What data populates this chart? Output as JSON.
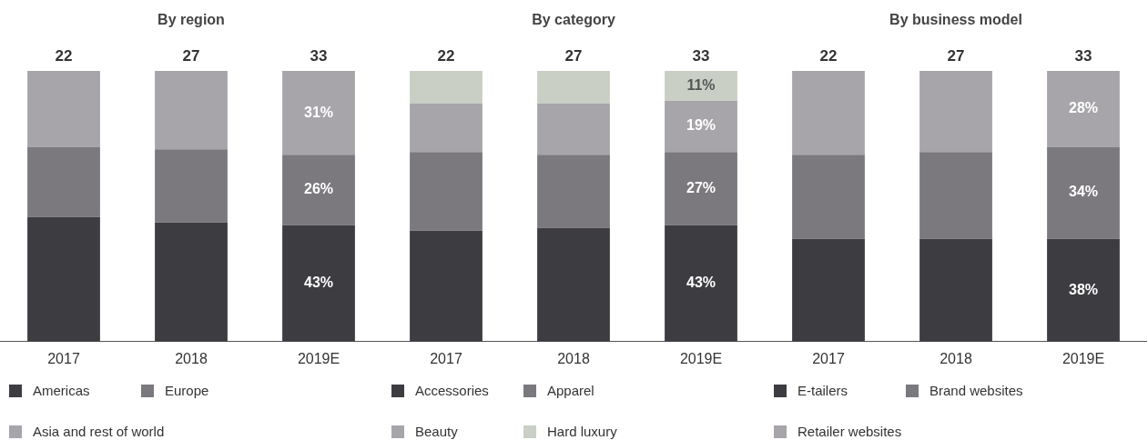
{
  "chart_data": [
    {
      "type": "bar",
      "title": "By region",
      "categories": [
        "2017",
        "2018",
        "2019E"
      ],
      "stacked": true,
      "tick_labels": "x",
      "legend": "bottom",
      "annotations": [
        {
          "text": "22",
          "x": "2017",
          "y": 100
        },
        {
          "text": "27",
          "x": "2018",
          "y": 100
        },
        {
          "text": "33",
          "x": "2019E",
          "y": 100
        }
      ],
      "series": [
        {
          "name": "Americas",
          "color": "#3c3c41",
          "values": [
            46,
            44,
            43
          ],
          "value_labels": [
            null,
            null,
            "43%"
          ]
        },
        {
          "name": "Europe",
          "color": "#7b797e",
          "values": [
            26,
            27,
            26
          ],
          "value_labels": [
            null,
            null,
            "26%"
          ]
        },
        {
          "name": "Asia and rest of world",
          "color": "#a7a5a9",
          "values": [
            28,
            29,
            31
          ],
          "value_labels": [
            null,
            null,
            "31%"
          ]
        }
      ]
    },
    {
      "type": "bar",
      "title": "By category",
      "categories": [
        "2017",
        "2018",
        "2019E"
      ],
      "stacked": true,
      "tick_labels": "x",
      "legend": "bottom",
      "annotations": [
        {
          "text": "22",
          "x": "2017",
          "y": 100
        },
        {
          "text": "27",
          "x": "2018",
          "y": 100
        },
        {
          "text": "33",
          "x": "2019E",
          "y": 100
        }
      ],
      "series": [
        {
          "name": "Accessories",
          "color": "#3c3c41",
          "values": [
            41,
            42,
            43
          ],
          "value_labels": [
            null,
            null,
            "43%"
          ]
        },
        {
          "name": "Apparel",
          "color": "#7b797e",
          "values": [
            29,
            27,
            27
          ],
          "value_labels": [
            null,
            null,
            "27%"
          ]
        },
        {
          "name": "Beauty",
          "color": "#a7a5a9",
          "values": [
            18,
            19,
            19
          ],
          "value_labels": [
            null,
            null,
            "19%"
          ]
        },
        {
          "name": "Hard luxury",
          "color": "#c9cfc5",
          "values": [
            12,
            12,
            11
          ],
          "value_labels": [
            null,
            null,
            "11%"
          ]
        }
      ]
    },
    {
      "type": "bar",
      "title": "By business model",
      "categories": [
        "2017",
        "2018",
        "2019E"
      ],
      "stacked": true,
      "tick_labels": "x",
      "legend": "bottom",
      "annotations": [
        {
          "text": "22",
          "x": "2017",
          "y": 100
        },
        {
          "text": "27",
          "x": "2018",
          "y": 100
        },
        {
          "text": "33",
          "x": "2019E",
          "y": 100
        }
      ],
      "series": [
        {
          "name": "E-tailers",
          "color": "#3c3c41",
          "values": [
            38,
            38,
            38
          ],
          "value_labels": [
            null,
            null,
            "38%"
          ]
        },
        {
          "name": "Brand websites",
          "color": "#7b797e",
          "values": [
            31,
            32,
            34
          ],
          "value_labels": [
            null,
            null,
            "34%"
          ]
        },
        {
          "name": "Retailer websites",
          "color": "#a7a5a9",
          "values": [
            31,
            30,
            28
          ],
          "value_labels": [
            null,
            null,
            "28%"
          ]
        }
      ]
    }
  ]
}
